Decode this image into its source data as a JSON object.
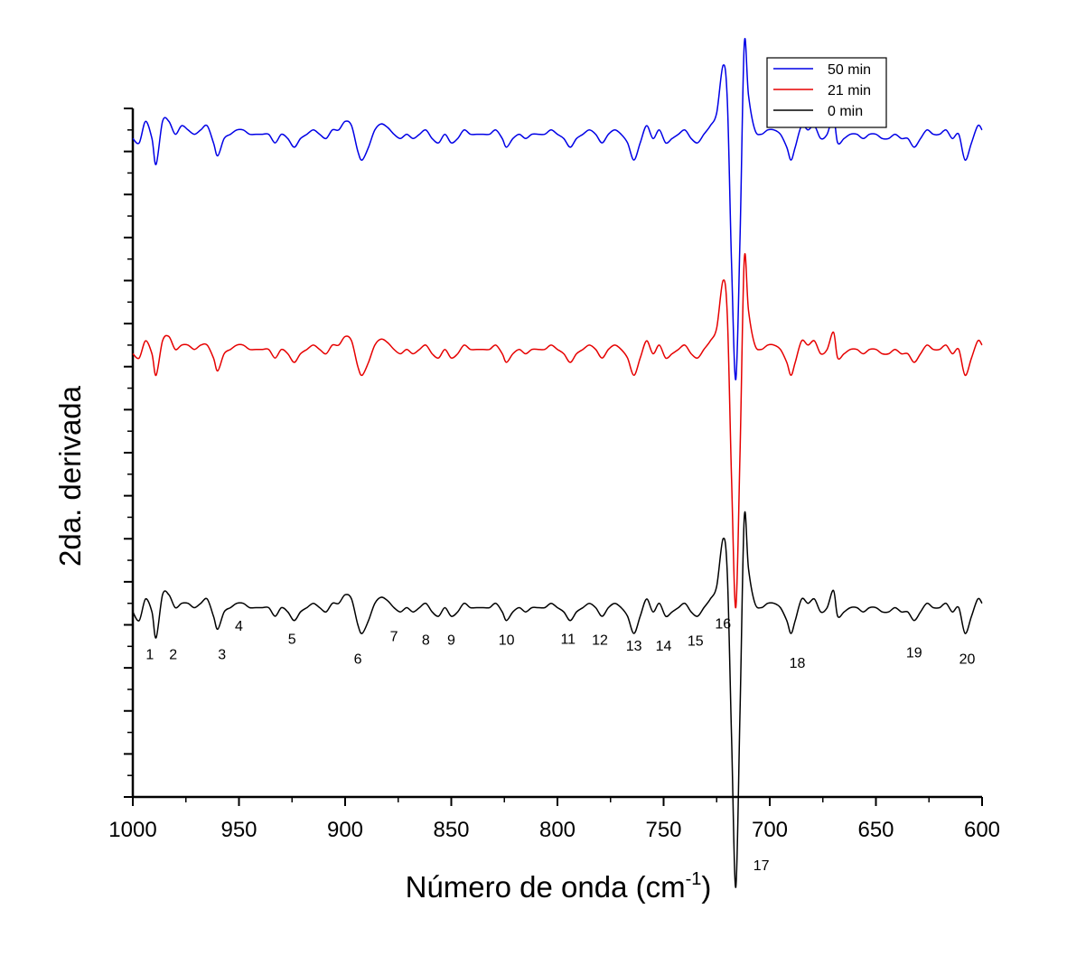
{
  "chart_data": {
    "type": "line",
    "xlabel_main": "Número de onda (cm",
    "xlabel_sup": "-1",
    "xlabel_end": ")",
    "ylabel": "2da. derivada",
    "xlim": [
      1000,
      600
    ],
    "x_reversed": true,
    "x_ticks": [
      1000,
      950,
      900,
      850,
      800,
      750,
      700,
      650,
      600
    ],
    "y_tick_labels_shown": false,
    "grid": false,
    "legend": {
      "placement": "top-right"
    },
    "series": [
      {
        "name": "50 min",
        "color": "#0000e6",
        "baseline": 7.7,
        "x": [
          1000,
          997,
          994,
          991,
          989,
          986,
          983,
          980,
          977,
          974,
          971,
          968,
          965,
          962,
          960,
          957,
          954,
          951,
          948,
          945,
          942,
          939,
          936,
          933,
          930,
          927,
          924,
          921,
          918,
          915,
          912,
          909,
          906,
          903,
          900,
          897,
          894,
          892,
          889,
          886,
          883,
          880,
          877,
          874,
          871,
          868,
          865,
          862,
          859,
          856,
          853,
          850,
          847,
          844,
          841,
          838,
          835,
          832,
          829,
          826,
          824,
          821,
          818,
          815,
          812,
          809,
          806,
          803,
          800,
          797,
          794,
          791,
          788,
          785,
          782,
          779,
          776,
          773,
          770,
          767,
          764,
          761,
          758,
          755,
          752,
          749,
          746,
          743,
          740,
          737,
          734,
          731,
          728,
          725,
          722,
          720,
          718,
          716,
          714,
          712,
          710,
          707,
          704,
          701,
          698,
          695,
          692,
          690,
          688,
          685,
          682,
          679,
          676,
          673,
          670,
          668,
          665,
          662,
          659,
          656,
          653,
          650,
          647,
          644,
          641,
          638,
          635,
          632,
          629,
          626,
          623,
          620,
          617,
          614,
          611,
          608,
          605,
          602,
          600
        ],
        "y": [
          -0.05,
          -0.1,
          0.15,
          -0.05,
          -0.35,
          0.15,
          0.15,
          0.0,
          0.1,
          0.05,
          0.0,
          0.05,
          0.1,
          -0.1,
          -0.25,
          -0.05,
          0.0,
          0.05,
          0.05,
          0.0,
          0.0,
          0.0,
          0.0,
          -0.1,
          0.0,
          -0.05,
          -0.15,
          -0.05,
          0.0,
          0.05,
          0.0,
          -0.05,
          0.05,
          0.05,
          0.15,
          0.1,
          -0.2,
          -0.3,
          -0.15,
          0.05,
          0.12,
          0.08,
          0.0,
          -0.05,
          0.0,
          -0.05,
          0.0,
          0.05,
          -0.05,
          -0.1,
          0.0,
          -0.1,
          -0.05,
          0.05,
          0.0,
          0.0,
          0.0,
          0.0,
          0.05,
          -0.05,
          -0.15,
          -0.05,
          0.0,
          -0.05,
          0.0,
          0.0,
          0.0,
          0.05,
          0.0,
          -0.05,
          -0.15,
          -0.05,
          0.0,
          0.05,
          0.0,
          -0.1,
          0.0,
          0.05,
          0.0,
          -0.1,
          -0.3,
          -0.1,
          0.1,
          -0.05,
          0.05,
          -0.1,
          -0.05,
          0.0,
          0.05,
          -0.05,
          -0.1,
          0.0,
          0.1,
          0.25,
          0.8,
          0.4,
          -1.5,
          -2.85,
          -1.2,
          1.05,
          0.45,
          0.05,
          0.0,
          0.05,
          0.05,
          0.0,
          -0.15,
          -0.3,
          -0.15,
          0.1,
          0.05,
          0.1,
          -0.05,
          0.0,
          0.2,
          -0.1,
          -0.05,
          0.0,
          0.0,
          -0.05,
          0.0,
          0.0,
          -0.05,
          -0.05,
          0.0,
          -0.05,
          -0.05,
          -0.15,
          -0.05,
          0.05,
          0.0,
          0.0,
          0.05,
          -0.05,
          0.0,
          -0.3,
          -0.1,
          0.1,
          0.05
        ]
      },
      {
        "name": "21 min",
        "color": "#e60000",
        "baseline": 5.2,
        "x": [
          1000,
          997,
          994,
          991,
          989,
          986,
          983,
          980,
          977,
          974,
          971,
          968,
          965,
          962,
          960,
          957,
          954,
          951,
          948,
          945,
          942,
          939,
          936,
          933,
          930,
          927,
          924,
          921,
          918,
          915,
          912,
          909,
          906,
          903,
          900,
          897,
          894,
          892,
          889,
          886,
          883,
          880,
          877,
          874,
          871,
          868,
          865,
          862,
          859,
          856,
          853,
          850,
          847,
          844,
          841,
          838,
          835,
          832,
          829,
          826,
          824,
          821,
          818,
          815,
          812,
          809,
          806,
          803,
          800,
          797,
          794,
          791,
          788,
          785,
          782,
          779,
          776,
          773,
          770,
          767,
          764,
          761,
          758,
          755,
          752,
          749,
          746,
          743,
          740,
          737,
          734,
          731,
          728,
          725,
          722,
          720,
          718,
          716,
          714,
          712,
          710,
          707,
          704,
          701,
          698,
          695,
          692,
          690,
          688,
          685,
          682,
          679,
          676,
          673,
          670,
          668,
          665,
          662,
          659,
          656,
          653,
          650,
          647,
          644,
          641,
          638,
          635,
          632,
          629,
          626,
          623,
          620,
          617,
          614,
          611,
          608,
          605,
          602,
          600
        ],
        "y": [
          -0.05,
          -0.1,
          0.1,
          -0.05,
          -0.3,
          0.1,
          0.15,
          0.0,
          0.05,
          0.05,
          0.0,
          0.05,
          0.05,
          -0.1,
          -0.25,
          -0.05,
          0.0,
          0.05,
          0.05,
          0.0,
          0.0,
          0.0,
          0.0,
          -0.1,
          0.0,
          -0.05,
          -0.15,
          -0.05,
          0.0,
          0.05,
          0.0,
          -0.05,
          0.05,
          0.05,
          0.15,
          0.1,
          -0.2,
          -0.3,
          -0.15,
          0.05,
          0.12,
          0.08,
          0.0,
          -0.05,
          0.0,
          -0.05,
          0.0,
          0.05,
          -0.05,
          -0.1,
          0.0,
          -0.1,
          -0.05,
          0.05,
          0.0,
          0.0,
          0.0,
          0.0,
          0.05,
          -0.05,
          -0.15,
          -0.05,
          0.0,
          -0.05,
          0.0,
          0.0,
          0.0,
          0.05,
          0.0,
          -0.05,
          -0.15,
          -0.05,
          0.0,
          0.05,
          0.0,
          -0.1,
          0.0,
          0.05,
          0.0,
          -0.1,
          -0.3,
          -0.1,
          0.1,
          -0.05,
          0.05,
          -0.1,
          -0.05,
          0.0,
          0.05,
          -0.05,
          -0.1,
          0.0,
          0.1,
          0.25,
          0.8,
          0.4,
          -1.5,
          -3.0,
          -1.2,
          1.05,
          0.45,
          0.05,
          0.0,
          0.05,
          0.05,
          0.0,
          -0.15,
          -0.3,
          -0.15,
          0.1,
          0.05,
          0.1,
          -0.05,
          0.0,
          0.2,
          -0.1,
          -0.05,
          0.0,
          0.0,
          -0.05,
          0.0,
          0.0,
          -0.05,
          -0.05,
          0.0,
          -0.05,
          -0.05,
          -0.15,
          -0.05,
          0.05,
          0.0,
          0.0,
          0.05,
          -0.05,
          0.0,
          -0.3,
          -0.1,
          0.1,
          0.05
        ]
      },
      {
        "name": "0 min",
        "color": "#000000",
        "baseline": 2.2,
        "x": [
          1000,
          997,
          994,
          991,
          989,
          986,
          983,
          980,
          977,
          974,
          971,
          968,
          965,
          962,
          960,
          957,
          954,
          951,
          948,
          945,
          942,
          939,
          936,
          933,
          930,
          927,
          924,
          921,
          918,
          915,
          912,
          909,
          906,
          903,
          900,
          897,
          894,
          892,
          889,
          886,
          883,
          880,
          877,
          874,
          871,
          868,
          865,
          862,
          859,
          856,
          853,
          850,
          847,
          844,
          841,
          838,
          835,
          832,
          829,
          826,
          824,
          821,
          818,
          815,
          812,
          809,
          806,
          803,
          800,
          797,
          794,
          791,
          788,
          785,
          782,
          779,
          776,
          773,
          770,
          767,
          764,
          761,
          758,
          755,
          752,
          749,
          746,
          743,
          740,
          737,
          734,
          731,
          728,
          725,
          722,
          720,
          718,
          716,
          714,
          712,
          710,
          707,
          704,
          701,
          698,
          695,
          692,
          690,
          688,
          685,
          682,
          679,
          676,
          673,
          670,
          668,
          665,
          662,
          659,
          656,
          653,
          650,
          647,
          644,
          641,
          638,
          635,
          632,
          629,
          626,
          623,
          620,
          617,
          614,
          611,
          608,
          605,
          602,
          600
        ],
        "y": [
          -0.05,
          -0.15,
          0.1,
          -0.05,
          -0.35,
          0.15,
          0.15,
          0.0,
          0.05,
          0.05,
          0.0,
          0.05,
          0.1,
          -0.1,
          -0.25,
          -0.05,
          0.0,
          0.05,
          0.05,
          0.0,
          0.0,
          0.0,
          0.0,
          -0.1,
          0.0,
          -0.05,
          -0.15,
          -0.05,
          0.0,
          0.05,
          0.0,
          -0.05,
          0.05,
          0.05,
          0.15,
          0.1,
          -0.2,
          -0.3,
          -0.15,
          0.05,
          0.12,
          0.08,
          0.0,
          -0.05,
          0.0,
          -0.05,
          0.0,
          0.05,
          -0.05,
          -0.1,
          0.0,
          -0.1,
          -0.05,
          0.05,
          0.0,
          0.0,
          0.0,
          0.0,
          0.05,
          -0.05,
          -0.15,
          -0.05,
          0.0,
          -0.05,
          0.0,
          0.0,
          0.0,
          0.05,
          0.0,
          -0.05,
          -0.15,
          -0.05,
          0.0,
          0.05,
          0.0,
          -0.1,
          0.0,
          0.05,
          0.0,
          -0.1,
          -0.3,
          -0.1,
          0.1,
          -0.05,
          0.05,
          -0.1,
          -0.05,
          0.0,
          0.05,
          -0.05,
          -0.1,
          0.0,
          0.1,
          0.25,
          0.8,
          0.4,
          -1.5,
          -3.25,
          -1.2,
          1.05,
          0.45,
          0.05,
          0.0,
          0.05,
          0.05,
          0.0,
          -0.15,
          -0.3,
          -0.15,
          0.1,
          0.05,
          0.1,
          -0.05,
          0.0,
          0.2,
          -0.1,
          -0.05,
          0.0,
          0.0,
          -0.05,
          0.0,
          0.0,
          -0.05,
          -0.05,
          0.0,
          -0.05,
          -0.05,
          -0.15,
          -0.05,
          0.05,
          0.0,
          0.0,
          0.05,
          -0.05,
          0.0,
          -0.3,
          -0.1,
          0.1,
          0.05
        ]
      }
    ],
    "annotations": [
      {
        "text": "1",
        "x": 992,
        "y": 1.6
      },
      {
        "text": "2",
        "x": 981,
        "y": 1.6
      },
      {
        "text": "3",
        "x": 958,
        "y": 1.6
      },
      {
        "text": "4",
        "x": 950,
        "y": 1.93
      },
      {
        "text": "5",
        "x": 925,
        "y": 1.78
      },
      {
        "text": "6",
        "x": 894,
        "y": 1.55
      },
      {
        "text": "7",
        "x": 877,
        "y": 1.81
      },
      {
        "text": "8",
        "x": 862,
        "y": 1.77
      },
      {
        "text": "9",
        "x": 850,
        "y": 1.77
      },
      {
        "text": "10",
        "x": 824,
        "y": 1.77
      },
      {
        "text": "11",
        "x": 795,
        "y": 1.78
      },
      {
        "text": "12",
        "x": 780,
        "y": 1.77
      },
      {
        "text": "13",
        "x": 764,
        "y": 1.7
      },
      {
        "text": "14",
        "x": 750,
        "y": 1.7
      },
      {
        "text": "15",
        "x": 735,
        "y": 1.76
      },
      {
        "text": "16",
        "x": 722,
        "y": 1.96
      },
      {
        "text": "17",
        "x": 704,
        "y": -0.85
      },
      {
        "text": "18",
        "x": 687,
        "y": 1.5
      },
      {
        "text": "19",
        "x": 632,
        "y": 1.62
      },
      {
        "text": "20",
        "x": 607,
        "y": 1.55
      }
    ]
  }
}
